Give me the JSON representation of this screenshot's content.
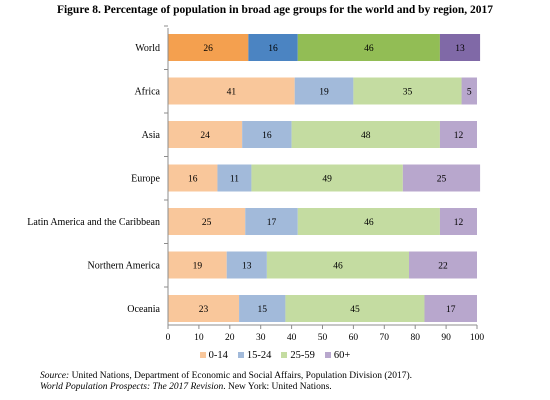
{
  "figure_title": "Figure 8.  Percentage of population in broad age groups for the world and by region, 2017",
  "source": {
    "line1_label": "Source:",
    "line1_text": " United Nations, Department of Economic and Social Affairs, Population Division (2017).",
    "line2_italic": "World Population Prospects: The 2017 Revision",
    "line2_text": ". New York: United Nations."
  },
  "colors": {
    "world": [
      "#f4a04f",
      "#4b84c2",
      "#92bd55",
      "#8069a7"
    ],
    "regions": [
      "#f9c79b",
      "#a2bada",
      "#c4dca1",
      "#b8a7cd"
    ]
  },
  "chart_data": {
    "type": "bar",
    "orientation": "horizontal",
    "stacked": true,
    "title": "Figure 8.  Percentage of population in broad age groups for the world and by region, 2017",
    "categories": [
      "World",
      "Africa",
      "Asia",
      "Europe",
      "Latin America and the Caribbean",
      "Northern America",
      "Oceania"
    ],
    "series": [
      {
        "name": "0-14",
        "values": [
          26,
          41,
          24,
          16,
          25,
          19,
          23
        ]
      },
      {
        "name": "15-24",
        "values": [
          16,
          19,
          16,
          11,
          17,
          13,
          15
        ]
      },
      {
        "name": "25-59",
        "values": [
          46,
          35,
          48,
          49,
          46,
          46,
          45
        ]
      },
      {
        "name": "60+",
        "values": [
          13,
          5,
          12,
          25,
          12,
          22,
          17
        ]
      }
    ],
    "xlim": [
      0,
      100
    ],
    "xticks": [
      0,
      10,
      20,
      30,
      40,
      50,
      60,
      70,
      80,
      90,
      100
    ],
    "xlabel": "",
    "ylabel": "",
    "grid": false,
    "legend_position": "bottom"
  }
}
